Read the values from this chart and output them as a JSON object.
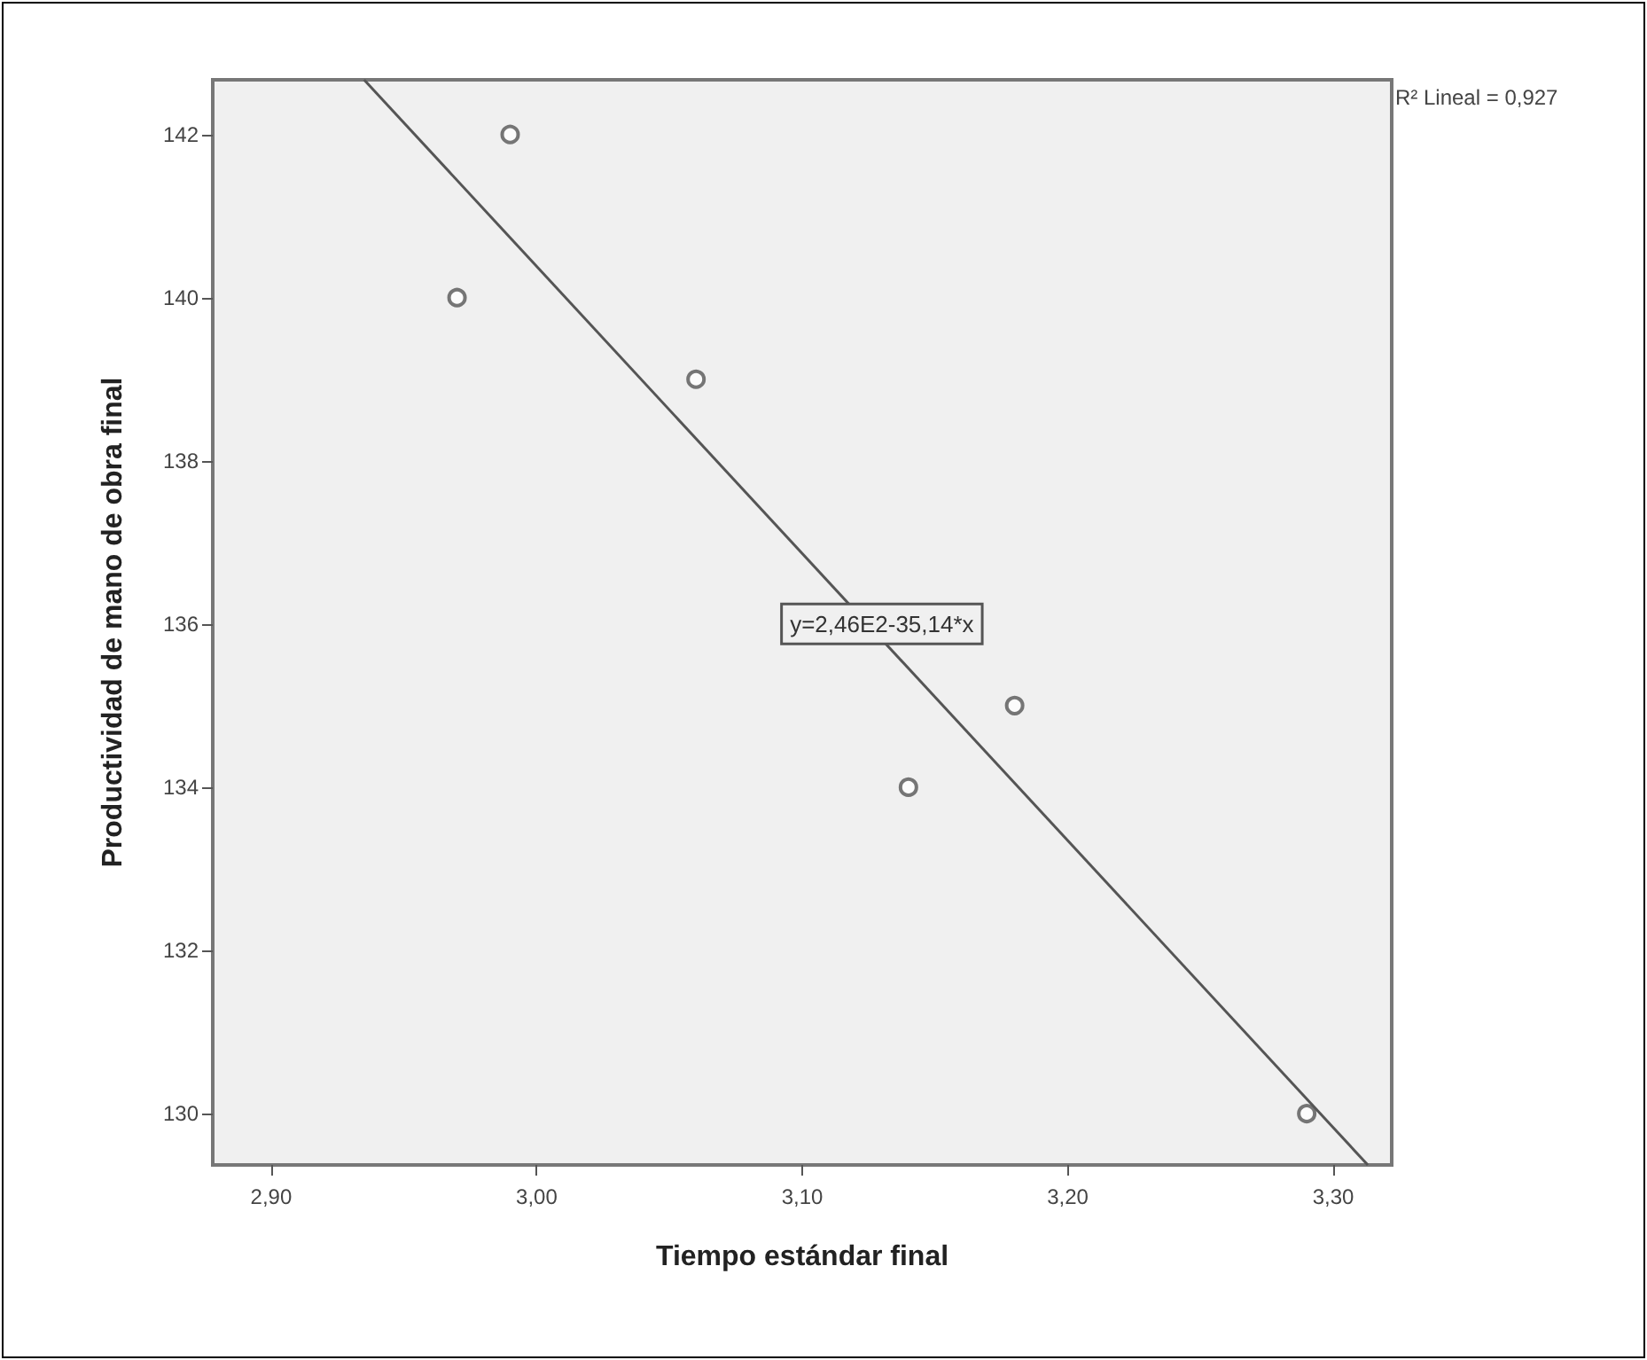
{
  "chart_data": {
    "type": "scatter",
    "xlabel": "Tiempo estándar final",
    "ylabel": "Productividad de mano de obra final",
    "xlim": [
      2.878,
      3.322
    ],
    "ylim": [
      129.37,
      142.67
    ],
    "xticks": [
      {
        "value": 2.9,
        "label": "2,90"
      },
      {
        "value": 3.0,
        "label": "3,00"
      },
      {
        "value": 3.1,
        "label": "3,10"
      },
      {
        "value": 3.2,
        "label": "3,20"
      },
      {
        "value": 3.3,
        "label": "3,30"
      }
    ],
    "yticks": [
      130,
      132,
      134,
      136,
      138,
      140,
      142
    ],
    "grid": false,
    "marker": "circle",
    "series": [
      {
        "color": "#555555",
        "x": [
          2.97,
          2.99,
          3.06,
          3.14,
          3.18,
          3.29
        ],
        "values": [
          140,
          142,
          139,
          134,
          135,
          130
        ]
      },
      {
        "type": "line",
        "color": "#555555",
        "line_style": "solid",
        "marker": "none",
        "x": [
          2.935,
          3.313
        ],
        "values": [
          142.67,
          129.37
        ]
      }
    ],
    "annotations": [
      {
        "text": "y=2,46E2-35,14*x",
        "x": 3.13,
        "y": 136
      },
      "R² Lineal = 0,927"
    ]
  }
}
